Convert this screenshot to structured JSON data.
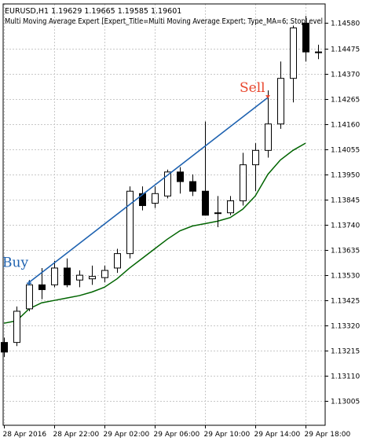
{
  "header": {
    "symbol_line": "EURUSD,H1  1.19629 1.19665 1.19585 1.19601",
    "expert_line": "Multi Moving Average Expert [Expert_Title=Multi Moving Average Expert; Type_MA=6; StopLevel"
  },
  "colors": {
    "bull_fill": "#ffffff",
    "bear_fill": "#000000",
    "ma_line": "#006400",
    "trade_line": "#1e62b0",
    "buy_label": "#1e62b0",
    "sell_label": "#e8452c",
    "grid": "#c8c8c8"
  },
  "chart_data": {
    "type": "candlestick",
    "y_axis": {
      "min": 1.12905,
      "max": 1.1466,
      "ticks": [
        "1.14580",
        "1.14475",
        "1.14370",
        "1.14265",
        "1.14160",
        "1.14055",
        "1.13950",
        "1.13845",
        "1.13740",
        "1.13635",
        "1.13530",
        "1.13425",
        "1.13320",
        "1.13215",
        "1.13110",
        "1.13005"
      ]
    },
    "x_axis": {
      "ticks": [
        {
          "bar": 0,
          "label": "28 Apr 2016"
        },
        {
          "bar": 4,
          "label": "28 Apr 22:00"
        },
        {
          "bar": 8,
          "label": "29 Apr 02:00"
        },
        {
          "bar": 12,
          "label": "29 Apr 06:00"
        },
        {
          "bar": 16,
          "label": "29 Apr 10:00"
        },
        {
          "bar": 20,
          "label": "29 Apr 14:00"
        },
        {
          "bar": 24,
          "label": "29 Apr 18:00"
        }
      ]
    },
    "grid": true,
    "ohlc": [
      [
        1.1325,
        1.1327,
        1.1319,
        1.1321
      ],
      [
        1.1325,
        1.134,
        1.13235,
        1.1338
      ],
      [
        1.1339,
        1.1351,
        1.1338,
        1.1349
      ],
      [
        1.1349,
        1.1356,
        1.1343,
        1.1347
      ],
      [
        1.1349,
        1.1359,
        1.1348,
        1.1356
      ],
      [
        1.1356,
        1.136,
        1.1348,
        1.1349
      ],
      [
        1.1351,
        1.1355,
        1.1348,
        1.1353
      ],
      [
        1.13515,
        1.1357,
        1.1349,
        1.13525
      ],
      [
        1.1352,
        1.1357,
        1.135,
        1.1355
      ],
      [
        1.1356,
        1.1364,
        1.1354,
        1.1362
      ],
      [
        1.1362,
        1.139,
        1.136,
        1.1388
      ],
      [
        1.1387,
        1.139,
        1.138,
        1.1382
      ],
      [
        1.1383,
        1.139,
        1.1381,
        1.1387
      ],
      [
        1.1386,
        1.1397,
        1.1385,
        1.1396
      ],
      [
        1.1396,
        1.1398,
        1.1387,
        1.1392
      ],
      [
        1.1392,
        1.1395,
        1.1386,
        1.1388
      ],
      [
        1.1388,
        1.1417,
        1.1378,
        1.1378
      ],
      [
        1.1379,
        1.1386,
        1.1373,
        1.1379
      ],
      [
        1.1379,
        1.1386,
        1.1378,
        1.1384
      ],
      [
        1.1384,
        1.1404,
        1.1382,
        1.1399
      ],
      [
        1.1399,
        1.1408,
        1.1388,
        1.1405
      ],
      [
        1.1405,
        1.143,
        1.1402,
        1.1416
      ],
      [
        1.1416,
        1.1442,
        1.1414,
        1.1435
      ],
      [
        1.1435,
        1.1457,
        1.1425,
        1.1456
      ],
      [
        1.1458,
        1.1461,
        1.1442,
        1.1446
      ],
      [
        1.1446,
        1.1449,
        1.1443,
        1.1446
      ]
    ],
    "ma": [
      [
        0,
        1.1333
      ],
      [
        1,
        1.1334
      ],
      [
        2,
        1.1339
      ],
      [
        3,
        1.13415
      ],
      [
        4,
        1.13425
      ],
      [
        5,
        1.13435
      ],
      [
        6,
        1.13445
      ],
      [
        7,
        1.1346
      ],
      [
        8,
        1.1348
      ],
      [
        9,
        1.13515
      ],
      [
        10,
        1.1356
      ],
      [
        11,
        1.136
      ],
      [
        12,
        1.1364
      ],
      [
        13,
        1.1368
      ],
      [
        14,
        1.13715
      ],
      [
        15,
        1.13735
      ],
      [
        16,
        1.13745
      ],
      [
        17,
        1.13755
      ],
      [
        18,
        1.1377
      ],
      [
        19,
        1.13805
      ],
      [
        20,
        1.1386
      ],
      [
        21,
        1.1395
      ],
      [
        22,
        1.1401
      ],
      [
        23,
        1.1405
      ],
      [
        24,
        1.1408
      ]
    ],
    "trade_line": {
      "from": {
        "bar": 2,
        "price": 1.135
      },
      "to": {
        "bar": 21,
        "price": 1.1427
      }
    },
    "annotations": [
      {
        "text": "Buy",
        "bar": 2,
        "price": 1.135,
        "side": "buy"
      },
      {
        "text": "Sell",
        "bar": 21,
        "price": 1.1427,
        "side": "sell"
      }
    ]
  }
}
